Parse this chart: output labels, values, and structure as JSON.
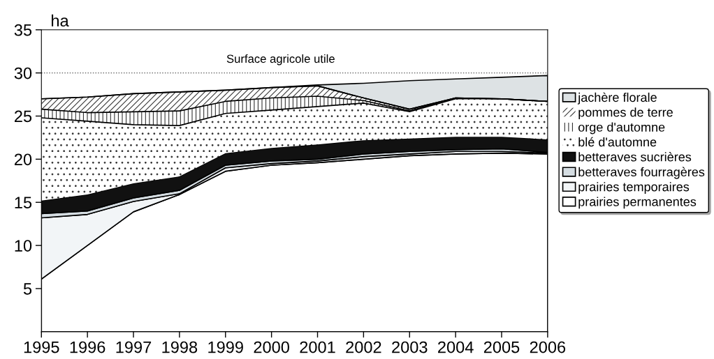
{
  "chart_data": {
    "type": "area",
    "stacked": true,
    "ylabel": "ha",
    "x": [
      1995,
      1996,
      1997,
      1998,
      1999,
      2000,
      2001,
      2002,
      2003,
      2004,
      2005,
      2006
    ],
    "series": [
      {
        "name": "prairies permanentes",
        "color": "#ffffff",
        "values": [
          6.1,
          10.0,
          13.9,
          15.9,
          18.6,
          19.3,
          19.6,
          20.0,
          20.4,
          20.6,
          20.7,
          20.6
        ]
      },
      {
        "name": "prairies temporaires",
        "color": "#f2f5f7",
        "values": [
          7.1,
          3.6,
          1.2,
          0.1,
          0.4,
          0.2,
          0.2,
          0.3,
          0.2,
          0.3,
          0.2,
          0.1
        ]
      },
      {
        "name": "betteraves fourragères",
        "color": "#d5dde2",
        "values": [
          0.5,
          0.4,
          0.4,
          0.4,
          0.3,
          0.3,
          0.2,
          0.3,
          0.3,
          0.2,
          0.3,
          0.1
        ]
      },
      {
        "name": "betteraves sucrières",
        "color": "#111111",
        "values": [
          1.5,
          1.9,
          1.7,
          1.6,
          1.4,
          1.5,
          1.7,
          1.6,
          1.5,
          1.5,
          1.4,
          1.5
        ]
      },
      {
        "name": "blé d'automne",
        "color": "#333333",
        "values": [
          9.6,
          8.5,
          6.8,
          5.9,
          4.6,
          4.4,
          4.4,
          4.3,
          3.1,
          4.4,
          4.4,
          4.4
        ]
      },
      {
        "name": "orge d'automne",
        "color": "#333333",
        "values": [
          1.0,
          1.0,
          1.5,
          1.7,
          1.4,
          1.4,
          1.2,
          0.3,
          0.1,
          0.1,
          0.0,
          0.0
        ]
      },
      {
        "name": "pommes de terre",
        "color": "#333333",
        "values": [
          1.2,
          1.8,
          2.1,
          2.2,
          1.3,
          1.2,
          1.2,
          0.3,
          0.2,
          0.0,
          0.0,
          0.0
        ]
      },
      {
        "name": "jachère florale",
        "color": "#dde2e4",
        "values": [
          0.0,
          0.0,
          0.0,
          0.0,
          0.0,
          0.0,
          0.1,
          1.7,
          3.3,
          2.2,
          2.5,
          3.0
        ]
      }
    ],
    "xlim": [
      1995,
      2006
    ],
    "xticks": [
      1995,
      1996,
      1997,
      1998,
      1999,
      2000,
      2001,
      2002,
      2003,
      2004,
      2005,
      2006
    ],
    "ylim": [
      0,
      35
    ],
    "yticks": [
      5,
      10,
      15,
      20,
      25,
      30,
      35
    ],
    "ref_lines": [
      {
        "axis": "y",
        "value": 30,
        "label": "Surface agricole utile",
        "color": "#555555",
        "line_style": "dotted"
      }
    ],
    "grid": false,
    "legend": "right"
  }
}
